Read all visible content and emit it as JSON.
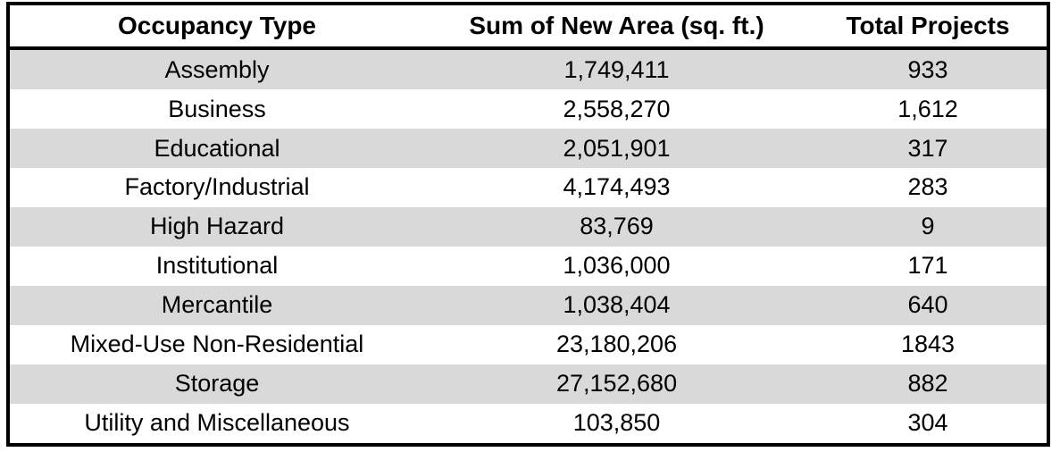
{
  "chart_data": {
    "type": "table",
    "columns": [
      "Occupancy Type",
      "Sum of New Area (sq. ft.)",
      "Total Projects"
    ],
    "rows": [
      {
        "occupancy_type": "Assembly",
        "sum_new_area": "1,749,411",
        "total_projects": "933"
      },
      {
        "occupancy_type": "Business",
        "sum_new_area": "2,558,270",
        "total_projects": "1,612"
      },
      {
        "occupancy_type": "Educational",
        "sum_new_area": "2,051,901",
        "total_projects": "317"
      },
      {
        "occupancy_type": "Factory/Industrial",
        "sum_new_area": "4,174,493",
        "total_projects": "283"
      },
      {
        "occupancy_type": "High Hazard",
        "sum_new_area": "83,769",
        "total_projects": "9"
      },
      {
        "occupancy_type": "Institutional",
        "sum_new_area": "1,036,000",
        "total_projects": "171"
      },
      {
        "occupancy_type": "Mercantile",
        "sum_new_area": "1,038,404",
        "total_projects": "640"
      },
      {
        "occupancy_type": "Mixed-Use Non-Residential",
        "sum_new_area": "23,180,206",
        "total_projects": "1843"
      },
      {
        "occupancy_type": "Storage",
        "sum_new_area": "27,152,680",
        "total_projects": "882"
      },
      {
        "occupancy_type": "Utility and Miscellaneous",
        "sum_new_area": "103,850",
        "total_projects": "304"
      }
    ],
    "layout": {
      "stripe_color": "#d9d9d9",
      "border_color": "#000000",
      "first_data_row_striped": true,
      "text_align": "center"
    }
  }
}
